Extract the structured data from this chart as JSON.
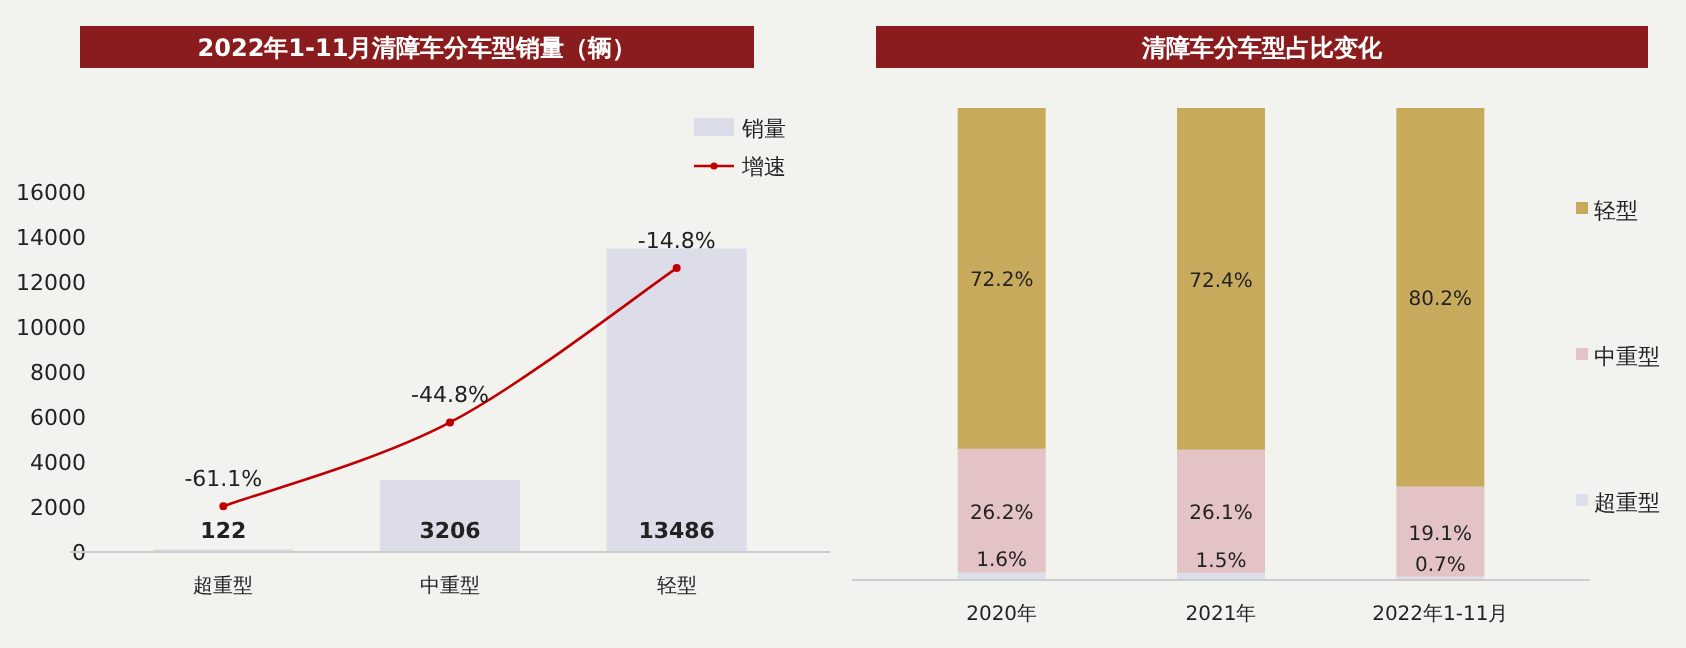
{
  "chart_data": [
    {
      "type": "bar",
      "title": "2022年1-11月清障车分车型销量（辆）",
      "categories": [
        "超重型",
        "中重型",
        "轻型"
      ],
      "series": [
        {
          "name": "销量",
          "color": "#dcdde8",
          "values": [
            122,
            3206,
            13486
          ]
        },
        {
          "name": "增速",
          "type": "line",
          "axis": "y2",
          "color": "#c00000",
          "values": [
            -61.1,
            -44.8,
            -14.8
          ],
          "value_labels": [
            "-61.1%",
            "-44.8%",
            "-14.8%"
          ]
        }
      ],
      "ylim": [
        0,
        16000
      ],
      "yticks": [
        0,
        2000,
        4000,
        6000,
        8000,
        10000,
        12000,
        14000,
        16000
      ],
      "y2lim": [
        -70,
        0
      ],
      "data_labels": true,
      "legend": "top right",
      "marker": "circle",
      "grid": false
    },
    {
      "type": "bar",
      "title": "清障车分车型占比变化",
      "categories": [
        "2020年",
        "2021年",
        "2022年1-11月"
      ],
      "stacked": true,
      "series": [
        {
          "name": "超重型",
          "color": "#dcdfe9",
          "values": [
            1.6,
            1.5,
            0.7
          ],
          "value_labels": [
            "1.6%",
            "1.5%",
            "0.7%"
          ]
        },
        {
          "name": "中重型",
          "color": "#e3c3c5",
          "values": [
            26.2,
            26.1,
            19.1
          ],
          "value_labels": [
            "26.2%",
            "26.1%",
            "19.1%"
          ]
        },
        {
          "name": "轻型",
          "color": "#c8aa5c",
          "values": [
            72.2,
            72.4,
            80.2
          ],
          "value_labels": [
            "72.2%",
            "72.4%",
            "80.2%"
          ]
        }
      ],
      "ylim": [
        0,
        100
      ],
      "legend": "right",
      "grid": false,
      "tick_labels": "x"
    }
  ]
}
